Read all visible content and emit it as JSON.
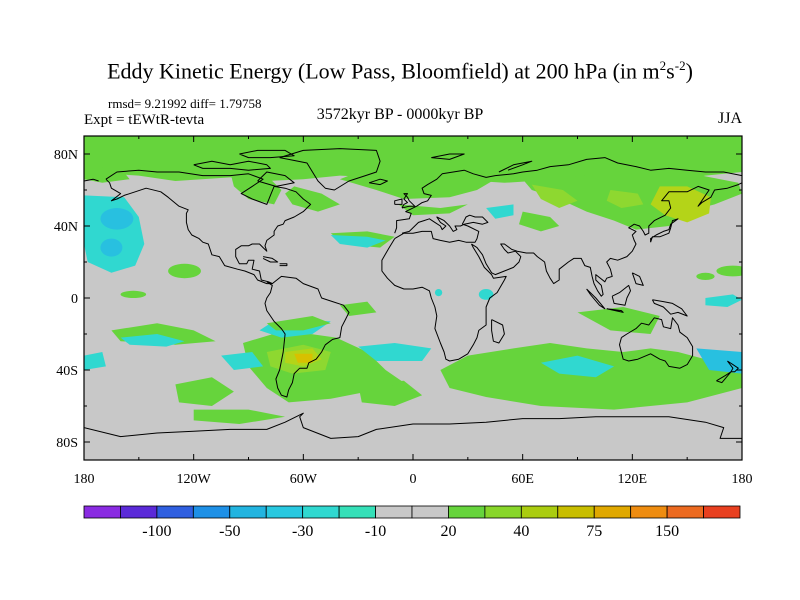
{
  "title": {
    "main": "Eddy Kinetic Energy (Low Pass, Bloomfield) at 200 hPa (in m",
    "sup1": "2",
    "s": "s",
    "sup2": "-2",
    "close": ")"
  },
  "stats": "rmsd= 9.21992  diff= 1.79758",
  "expt": "Expt = tEWtR-tevta",
  "period": "3572kyr BP - 0000kyr BP",
  "season": "JJA",
  "lat_labels": [
    "80N",
    "40N",
    "0",
    "40S",
    "80S"
  ],
  "lon_labels": [
    "180",
    "120W",
    "60W",
    "0",
    "60E",
    "120E",
    "180"
  ],
  "colorbar": {
    "colors": [
      "#8a2be2",
      "#5b2ad8",
      "#2f5fe0",
      "#1e90e6",
      "#22b4e0",
      "#28c8e0",
      "#30d8d0",
      "#35e0b8",
      "#c8c8c8",
      "#c8c8c8",
      "#66d43c",
      "#88d62a",
      "#aacc10",
      "#c8be00",
      "#e0a800",
      "#ee8c10",
      "#ec6a20",
      "#e84020"
    ],
    "labels": [
      "-100",
      "-50",
      "-30",
      "-10",
      "20",
      "40",
      "75",
      "150"
    ]
  },
  "colors": {
    "background": "#c8c8c8",
    "green": "#66d43c",
    "light_green": "#8ed830",
    "yellow_green": "#b4d418",
    "cyan": "#30d8d0",
    "light_blue": "#28c0e0",
    "orange": "#d8c000"
  }
}
